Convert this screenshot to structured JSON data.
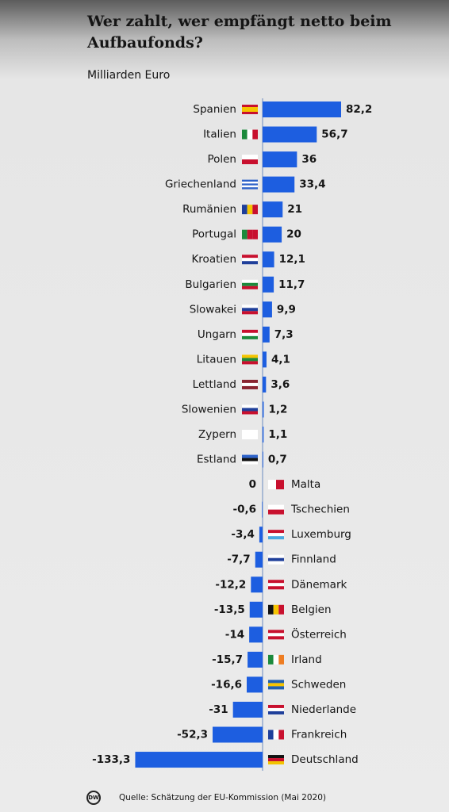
{
  "chart_data": {
    "type": "bar",
    "orientation": "horizontal",
    "title_lines": [
      "Wer zahlt, wer empfängt netto beim",
      "Aufbaufonds?"
    ],
    "subtitle": "Milliarden Euro",
    "categories": [
      "Spanien",
      "Italien",
      "Polen",
      "Griechenland",
      "Rumänien",
      "Portugal",
      "Kroatien",
      "Bulgarien",
      "Slowakei",
      "Ungarn",
      "Litauen",
      "Lettland",
      "Slowenien",
      "Zypern",
      "Estland",
      "Malta",
      "Tschechien",
      "Luxemburg",
      "Finnland",
      "Dänemark",
      "Belgien",
      "Österreich",
      "Irland",
      "Schweden",
      "Niederlande",
      "Frankreich",
      "Deutschland"
    ],
    "values": [
      82.2,
      56.7,
      36,
      33.4,
      21,
      20,
      12.1,
      11.7,
      9.9,
      7.3,
      4.1,
      3.6,
      1.2,
      1.1,
      0.7,
      0,
      -0.6,
      -3.4,
      -7.7,
      -12.2,
      -13.5,
      -14,
      -15.7,
      -16.6,
      -31,
      -52.3,
      -133.3
    ],
    "value_labels": [
      "82,2",
      "56,7",
      "36",
      "33,4",
      "21",
      "20",
      "12,1",
      "11,7",
      "9,9",
      "7,3",
      "4,1",
      "3,6",
      "1,2",
      "1,1",
      "0,7",
      "0",
      "-0,6",
      "-3,4",
      "-7,7",
      "-12,2",
      "-13,5",
      "-14",
      "-15,7",
      "-16,6",
      "-31",
      "-52,3",
      "-133,3"
    ],
    "color": "#1d5ee0",
    "source": "Quelle: Schätzung der EU-Kommission (Mai 2020)",
    "logo": "DW"
  }
}
